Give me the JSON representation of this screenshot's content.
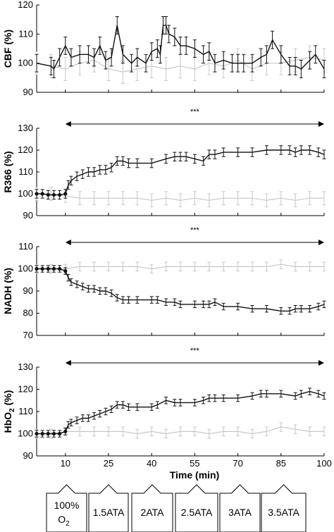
{
  "colors": {
    "treatment": "#111111",
    "control": "#c8c8c8",
    "axis": "#000000"
  },
  "x_axis": {
    "label": "Time (min)",
    "ticks": [
      10,
      25,
      40,
      55,
      70,
      85,
      100
    ],
    "tick_labels": [
      "10",
      "25",
      "40",
      "55",
      "70",
      "85",
      "100"
    ]
  },
  "pressure_boxes": [
    {
      "label": "100%",
      "sub_main": "O",
      "sub": "2"
    },
    {
      "label": "1.5ATA"
    },
    {
      "label": "2ATA"
    },
    {
      "label": "2.5ATA"
    },
    {
      "label": "3ATA"
    },
    {
      "label": "3.5ATA"
    }
  ],
  "chart_data": [
    {
      "type": "line",
      "ylabel": "CBF (%)",
      "xlim": [
        0,
        100
      ],
      "ylim": [
        90,
        120
      ],
      "yticks": [
        90,
        100,
        110,
        120
      ],
      "significance": "",
      "series": [
        {
          "key": "treatment",
          "err": 3,
          "x": [
            0,
            5,
            6,
            8,
            10,
            12,
            15,
            18,
            20,
            22,
            24,
            26,
            28,
            30,
            33,
            35,
            38,
            40,
            42,
            43,
            44,
            45,
            46,
            48,
            50,
            52,
            55,
            58,
            60,
            62,
            65,
            68,
            70,
            72,
            75,
            78,
            80,
            82,
            85,
            88,
            90,
            92,
            95,
            97,
            100
          ],
          "y": [
            100,
            99,
            98,
            102,
            106,
            102,
            103,
            103,
            102,
            106,
            101,
            102,
            113,
            103,
            100,
            102,
            100,
            104,
            105,
            103,
            113,
            113,
            110,
            109,
            106,
            106,
            105,
            103,
            104,
            100,
            101,
            100,
            100,
            100,
            100,
            102,
            103,
            108,
            103,
            99,
            99,
            98,
            101,
            103,
            98
          ]
        },
        {
          "key": "control",
          "err": 4,
          "x": [
            0,
            5,
            10,
            15,
            20,
            25,
            30,
            35,
            40,
            45,
            50,
            55,
            60,
            65,
            70,
            75,
            80,
            85,
            90,
            95,
            100
          ],
          "y": [
            100,
            99,
            98,
            100,
            101,
            98,
            97,
            98,
            99,
            98,
            99,
            98,
            100,
            99,
            101,
            98,
            100,
            100,
            101,
            102,
            101
          ]
        }
      ]
    },
    {
      "type": "line",
      "ylabel": "R366 (%)",
      "xlim": [
        0,
        100
      ],
      "ylim": [
        90,
        130
      ],
      "yticks": [
        90,
        100,
        110,
        120,
        130
      ],
      "significance": "***",
      "series": [
        {
          "key": "treatment",
          "err": 2,
          "x": [
            0,
            2,
            4,
            6,
            8,
            10,
            11,
            12,
            14,
            16,
            18,
            20,
            22,
            24,
            26,
            28,
            30,
            32,
            35,
            40,
            45,
            48,
            50,
            52,
            55,
            58,
            60,
            62,
            65,
            70,
            75,
            80,
            85,
            88,
            90,
            92,
            95,
            98,
            100
          ],
          "y": [
            100,
            100,
            99.5,
            99.5,
            99.5,
            100,
            104,
            106,
            108,
            109,
            110,
            110,
            111,
            111,
            112,
            115,
            115,
            114,
            114,
            114,
            116,
            117,
            117,
            117,
            116,
            115,
            118,
            118,
            119,
            119,
            119,
            120,
            120,
            120,
            119,
            120,
            120,
            119,
            118
          ]
        },
        {
          "key": "control",
          "err": 3,
          "x": [
            0,
            5,
            10,
            15,
            20,
            25,
            30,
            35,
            40,
            45,
            50,
            55,
            60,
            65,
            70,
            75,
            80,
            85,
            90,
            95,
            100
          ],
          "y": [
            100,
            100,
            99,
            98,
            98,
            98,
            98,
            98,
            97,
            98,
            97,
            98,
            97,
            98,
            98,
            98,
            97,
            98,
            97,
            98,
            98
          ]
        }
      ]
    },
    {
      "type": "line",
      "ylabel": "NADH (%)",
      "xlim": [
        0,
        100
      ],
      "ylim": [
        70,
        110
      ],
      "yticks": [
        70,
        80,
        90,
        100,
        110
      ],
      "significance": "***",
      "series": [
        {
          "key": "treatment",
          "err": 1.5,
          "x": [
            0,
            2,
            4,
            6,
            8,
            10,
            11,
            12,
            14,
            16,
            18,
            20,
            22,
            24,
            26,
            28,
            30,
            32,
            35,
            40,
            42,
            45,
            48,
            50,
            55,
            58,
            60,
            62,
            65,
            70,
            75,
            80,
            85,
            88,
            90,
            92,
            95,
            98,
            100
          ],
          "y": [
            100,
            100,
            100,
            100,
            100,
            99,
            96,
            94,
            93,
            92,
            91,
            91,
            90,
            90,
            89,
            87,
            86,
            86,
            86,
            86,
            86,
            85,
            85,
            84,
            84,
            84,
            84,
            85,
            83,
            83,
            82,
            82,
            81,
            81,
            82,
            82,
            82,
            83,
            84
          ]
        },
        {
          "key": "control",
          "err": 2,
          "x": [
            0,
            5,
            10,
            15,
            20,
            25,
            30,
            35,
            40,
            45,
            50,
            55,
            60,
            65,
            70,
            75,
            80,
            85,
            90,
            95,
            100
          ],
          "y": [
            100,
            100,
            100,
            101,
            101,
            101,
            101,
            101,
            100,
            101,
            101,
            101,
            101,
            101,
            101,
            101,
            101,
            102,
            101,
            101,
            101
          ]
        }
      ]
    },
    {
      "type": "line",
      "ylabel": "HbO2 (%)",
      "xlim": [
        0,
        100
      ],
      "ylim": [
        90,
        130
      ],
      "yticks": [
        90,
        100,
        110,
        120,
        130
      ],
      "significance": "***",
      "series": [
        {
          "key": "treatment",
          "err": 1.5,
          "x": [
            0,
            2,
            4,
            6,
            8,
            10,
            11,
            12,
            14,
            16,
            18,
            20,
            22,
            24,
            26,
            28,
            30,
            32,
            35,
            40,
            42,
            45,
            48,
            50,
            55,
            58,
            60,
            62,
            65,
            70,
            75,
            78,
            80,
            85,
            90,
            92,
            95,
            98,
            100
          ],
          "y": [
            100,
            100,
            100,
            100,
            100,
            101,
            104,
            105,
            106,
            107,
            107,
            108,
            109,
            110,
            111,
            113,
            113,
            112,
            112,
            112,
            113,
            115,
            114,
            114,
            114,
            115,
            116,
            116,
            116,
            116,
            117,
            118,
            118,
            118,
            117,
            118,
            119,
            118,
            117
          ]
        },
        {
          "key": "control",
          "err": 2,
          "x": [
            0,
            5,
            10,
            15,
            20,
            25,
            30,
            35,
            40,
            45,
            50,
            55,
            60,
            65,
            70,
            75,
            80,
            85,
            90,
            95,
            100
          ],
          "y": [
            100,
            100,
            101,
            101,
            101,
            101,
            101,
            100,
            101,
            100,
            101,
            101,
            100,
            101,
            101,
            100,
            101,
            103,
            102,
            101,
            101
          ]
        }
      ]
    }
  ]
}
